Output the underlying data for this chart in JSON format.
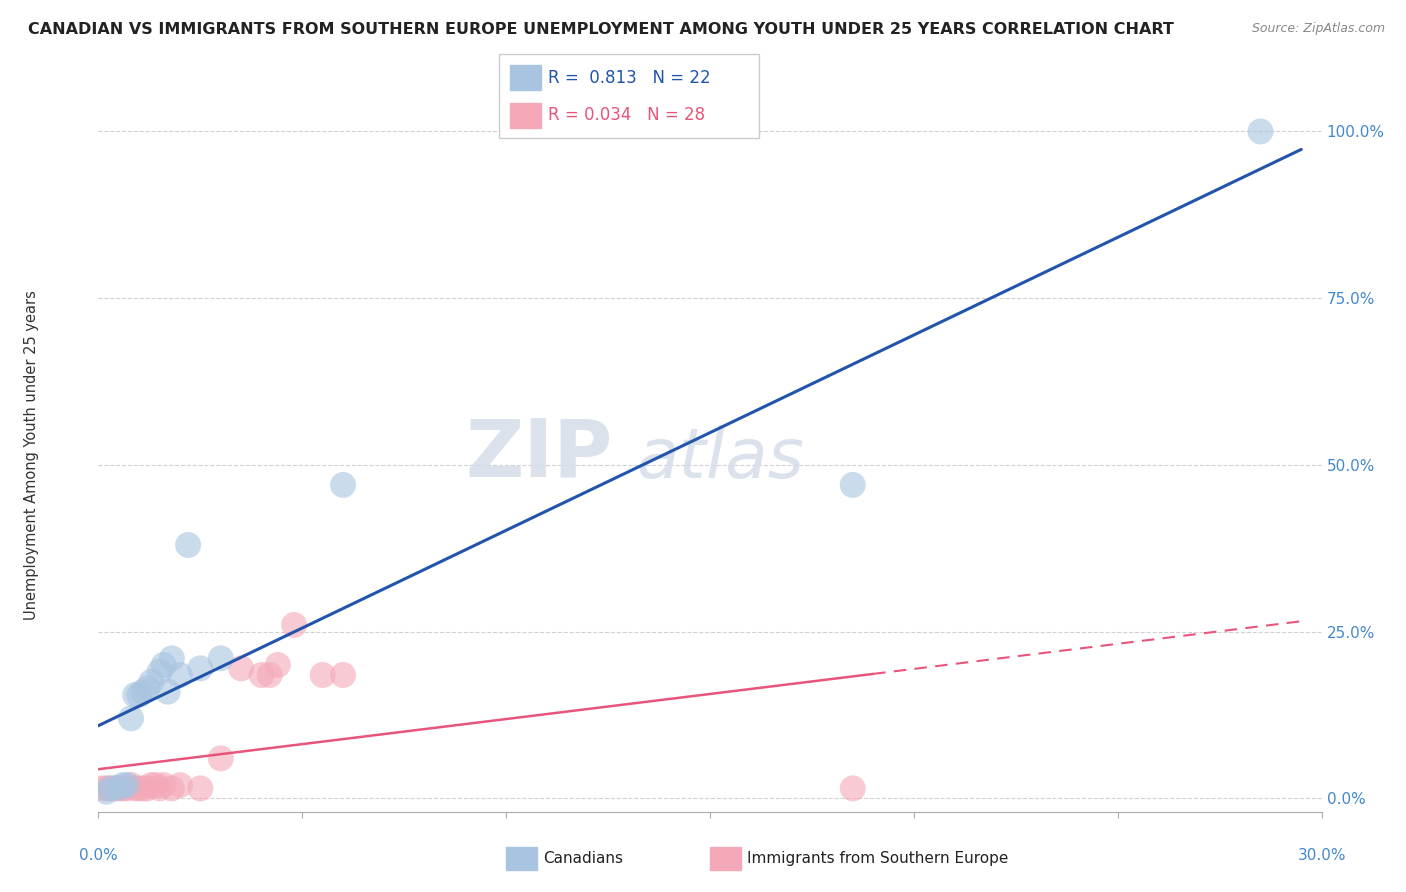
{
  "title": "CANADIAN VS IMMIGRANTS FROM SOUTHERN EUROPE UNEMPLOYMENT AMONG YOUTH UNDER 25 YEARS CORRELATION CHART",
  "source": "Source: ZipAtlas.com",
  "ylabel": "Unemployment Among Youth under 25 years",
  "legend_label1": "Canadians",
  "legend_label2": "Immigrants from Southern Europe",
  "r1": "0.813",
  "n1": "22",
  "r2": "0.034",
  "n2": "28",
  "color_blue": "#a8c4e0",
  "color_pink": "#f4a8b8",
  "color_blue_line": "#2255aa",
  "color_pink_line": "#e8557a",
  "watermark_zip": "ZIP",
  "watermark_atlas": "atlas",
  "blue_x": [
    0.002,
    0.003,
    0.005,
    0.006,
    0.007,
    0.008,
    0.009,
    0.01,
    0.011,
    0.012,
    0.013,
    0.015,
    0.016,
    0.017,
    0.018,
    0.02,
    0.022,
    0.025,
    0.03,
    0.06,
    0.185,
    0.285
  ],
  "blue_y": [
    0.01,
    0.015,
    0.016,
    0.02,
    0.02,
    0.12,
    0.155,
    0.155,
    0.16,
    0.165,
    0.175,
    0.19,
    0.2,
    0.16,
    0.21,
    0.185,
    0.38,
    0.195,
    0.21,
    0.47,
    0.47,
    1.0
  ],
  "pink_x": [
    0.001,
    0.002,
    0.003,
    0.004,
    0.005,
    0.006,
    0.007,
    0.008,
    0.009,
    0.01,
    0.011,
    0.012,
    0.013,
    0.014,
    0.015,
    0.016,
    0.018,
    0.02,
    0.025,
    0.03,
    0.035,
    0.04,
    0.042,
    0.044,
    0.048,
    0.055,
    0.06,
    0.185
  ],
  "pink_y": [
    0.015,
    0.015,
    0.015,
    0.015,
    0.015,
    0.015,
    0.015,
    0.02,
    0.015,
    0.015,
    0.015,
    0.015,
    0.02,
    0.02,
    0.015,
    0.02,
    0.015,
    0.02,
    0.015,
    0.06,
    0.195,
    0.185,
    0.185,
    0.2,
    0.26,
    0.185,
    0.185,
    0.015
  ],
  "xlim": [
    0.0,
    0.3
  ],
  "ylim": [
    -0.02,
    1.05
  ],
  "ytick_values": [
    0.0,
    0.25,
    0.5,
    0.75,
    1.0
  ],
  "ytick_labels": [
    "0.0%",
    "25.0%",
    "50.0%",
    "75.0%",
    "100.0%"
  ],
  "xtick_positions": [
    0.0,
    0.05,
    0.1,
    0.15,
    0.2,
    0.25,
    0.3
  ]
}
